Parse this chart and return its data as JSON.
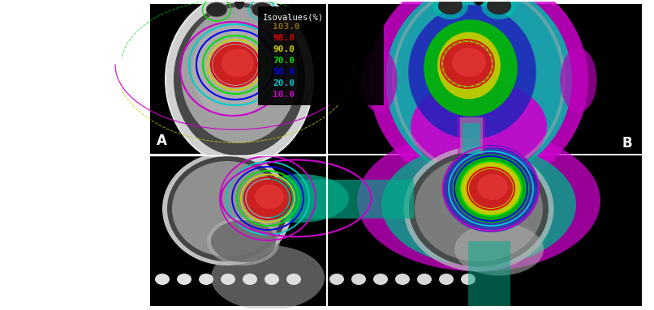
{
  "legend_title": "Isovalues(%)",
  "legend_entries": [
    {
      "label": "103.0",
      "color": "#8B6914"
    },
    {
      "label": "98.0",
      "color": "#DD0000"
    },
    {
      "label": "90.0",
      "color": "#CCCC00"
    },
    {
      "label": "70.0",
      "color": "#00DD00"
    },
    {
      "label": "50.0",
      "color": "#0000EE"
    },
    {
      "label": "20.0",
      "color": "#00CCCC"
    },
    {
      "label": "10.0",
      "color": "#CC00CC"
    }
  ],
  "label_A": "A",
  "label_B": "B",
  "figsize": [
    8.06,
    3.83
  ],
  "dpi": 100,
  "fig_bg": "#ffffff",
  "panel_bg": "#000000",
  "white_region_color": "#f0f0f0"
}
